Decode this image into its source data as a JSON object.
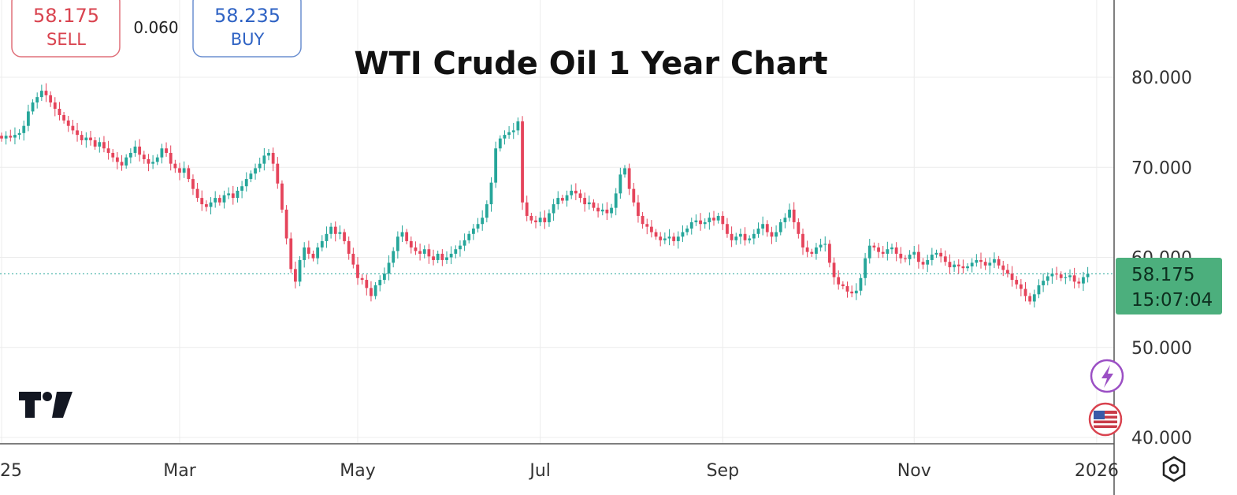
{
  "quote": {
    "sell_price": "58.175",
    "sell_label": "SELL",
    "spread": "0.060",
    "buy_price": "58.235",
    "buy_label": "BUY"
  },
  "price_tag": {
    "price": "58.175",
    "countdown": "15:07:04"
  },
  "colors": {
    "up": "#26a69a",
    "down": "#e5445b",
    "price_tag": "#4caf7d"
  },
  "chart_data": {
    "type": "candlestick",
    "title": "WTI Crude Oil 1 Year Chart",
    "ylim": [
      40,
      80
    ],
    "yticks": [
      {
        "value": 40,
        "label": "40.000"
      },
      {
        "value": 50,
        "label": "50.000"
      },
      {
        "value": 60,
        "label": "60.000"
      },
      {
        "value": 70,
        "label": "70.000"
      },
      {
        "value": 80,
        "label": "80.000"
      }
    ],
    "xticks": [
      {
        "index": 0,
        "label": "25"
      },
      {
        "index": 40,
        "label": "Mar"
      },
      {
        "index": 80,
        "label": "May"
      },
      {
        "index": 121,
        "label": "Jul"
      },
      {
        "index": 162,
        "label": "Sep"
      },
      {
        "index": 205,
        "label": "Nov"
      },
      {
        "index": 246,
        "label": "2026"
      }
    ],
    "last_price": 58.175,
    "grid": true,
    "close": [
      73.2,
      73.5,
      73.3,
      73.6,
      73.8,
      74.6,
      76.2,
      77.2,
      77.8,
      78.5,
      78.0,
      77.2,
      76.5,
      75.8,
      75.2,
      74.6,
      74.1,
      73.6,
      73.0,
      73.3,
      73.0,
      72.3,
      72.8,
      72.1,
      71.6,
      71.1,
      70.6,
      70.2,
      71.1,
      71.6,
      72.3,
      71.4,
      70.9,
      70.4,
      70.6,
      71.1,
      72.1,
      71.6,
      70.4,
      69.9,
      69.4,
      69.9,
      68.7,
      67.6,
      66.6,
      65.9,
      65.6,
      66.1,
      66.6,
      66.1,
      66.9,
      67.1,
      66.6,
      67.4,
      67.9,
      68.7,
      69.3,
      69.9,
      70.4,
      71.3,
      71.6,
      70.4,
      68.2,
      65.3,
      62.1,
      58.7,
      57.3,
      59.7,
      61.1,
      60.4,
      59.9,
      61.1,
      61.8,
      62.6,
      63.4,
      62.6,
      62.8,
      61.8,
      60.4,
      59.2,
      57.7,
      57.5,
      56.6,
      55.7,
      56.9,
      57.5,
      58.2,
      59.4,
      60.7,
      62.3,
      62.8,
      61.8,
      61.1,
      60.7,
      60.4,
      60.9,
      60.1,
      59.7,
      60.4,
      59.7,
      60.0,
      60.4,
      60.9,
      61.3,
      61.9,
      62.6,
      63.2,
      63.7,
      64.4,
      65.9,
      68.3,
      72.1,
      73.2,
      73.6,
      73.9,
      74.1,
      75.1,
      66.1,
      64.6,
      64.1,
      63.9,
      64.4,
      63.9,
      64.9,
      65.9,
      66.6,
      66.3,
      66.9,
      67.4,
      67.1,
      66.6,
      65.9,
      66.1,
      65.5,
      65.1,
      65.3,
      64.9,
      65.5,
      67.1,
      69.2,
      69.9,
      67.6,
      66.1,
      64.6,
      63.7,
      63.4,
      62.8,
      62.3,
      61.9,
      62.1,
      62.3,
      61.8,
      62.3,
      62.8,
      63.2,
      63.9,
      64.1,
      63.7,
      63.9,
      64.4,
      64.1,
      64.6,
      63.7,
      62.6,
      61.9,
      62.3,
      62.6,
      61.9,
      62.1,
      62.6,
      63.2,
      63.7,
      62.8,
      62.3,
      62.8,
      63.9,
      64.4,
      65.3,
      63.9,
      62.6,
      61.1,
      60.6,
      60.4,
      61.1,
      61.4,
      61.5,
      59.4,
      57.8,
      57.0,
      56.8,
      56.2,
      56.0,
      56.3,
      57.7,
      59.9,
      61.3,
      61.1,
      60.6,
      60.4,
      60.9,
      61.1,
      60.4,
      59.9,
      59.8,
      60.3,
      60.6,
      59.5,
      59.2,
      59.7,
      60.3,
      60.5,
      60.1,
      59.5,
      58.9,
      59.2,
      59.0,
      58.8,
      59.0,
      59.4,
      59.7,
      59.5,
      59.1,
      59.4,
      59.8,
      59.1,
      58.6,
      58.2,
      57.5,
      57.0,
      56.5,
      55.7,
      55.1,
      55.9,
      56.9,
      57.4,
      57.9,
      58.2,
      58.1,
      57.7,
      57.8,
      58.0,
      57.3,
      57.1,
      57.8,
      58.175
    ]
  }
}
